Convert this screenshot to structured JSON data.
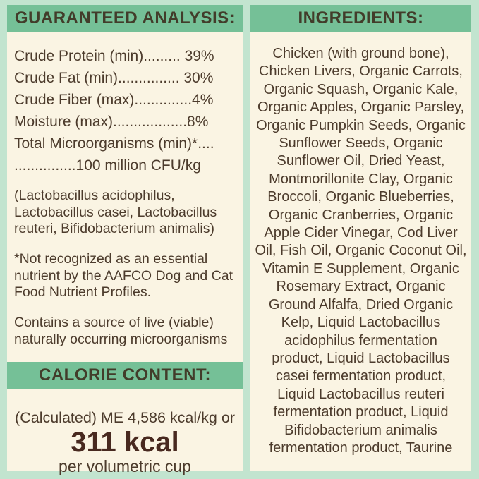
{
  "colors": {
    "background_mint": "#c2e4cf",
    "panel_cream": "#faf4e3",
    "header_band_green": "#75c097",
    "header_text": "#423c2a",
    "body_text": "#4c3b2c",
    "kcal_text": "#48291f"
  },
  "guaranteed_analysis": {
    "title": "GUARANTEED ANALYSIS:",
    "rows": [
      "Crude Protein (min)......... 39%",
      "Crude Fat (min)............... 30%",
      "Crude Fiber (max)..............4%",
      "Moisture (max)..................8%",
      "Total Microorganisms (min)*....",
      "...............100 million CFU/kg"
    ],
    "microorganisms_note": [
      "(Lactobacillus acidophilus,",
      "Lactobacillus casei, Lactobacillus",
      "reuteri, Bifidobacterium animalis)"
    ],
    "aafco_footnote": [
      "*Not recognized as an essential",
      "nutrient by the AAFCO Dog and Cat",
      "Food Nutrient Profiles."
    ],
    "live_note": [
      "Contains a source of live (viable)",
      "naturally occurring microorganisms"
    ]
  },
  "calorie_content": {
    "title": "CALORIE CONTENT:",
    "kcal_per_kg_line": "(Calculated) ME 4,586 kcal/kg or",
    "kcal_per_cup": "311 kcal",
    "cup_unit_label": "per volumetric cup"
  },
  "ingredients": {
    "title": "INGREDIENTS:",
    "lines": [
      "Chicken (with ground bone),",
      "Chicken Livers, Organic Carrots,",
      "Organic Squash, Organic Kale,",
      "Organic Apples, Organic Parsley,",
      "Organic Pumpkin Seeds, Organic",
      "Sunflower Seeds, Organic",
      "Sunflower Oil, Dried Yeast,",
      "Montmorillonite Clay, Organic",
      "Broccoli, Organic Blueberries,",
      "Organic Cranberries, Organic",
      "Apple Cider Vinegar, Cod Liver",
      "Oil, Fish Oil, Organic Coconut Oil,",
      "Vitamin E Supplement, Organic",
      "Rosemary Extract, Organic",
      "Ground Alfalfa, Dried Organic",
      "Kelp, Liquid Lactobacillus",
      "acidophilus fermentation",
      "product, Liquid Lactobacillus",
      "casei fermentation product,",
      "Liquid Lactobacillus reuteri",
      "fermentation product, Liquid",
      "Bifidobacterium animalis",
      "fermentation product, Taurine"
    ]
  }
}
